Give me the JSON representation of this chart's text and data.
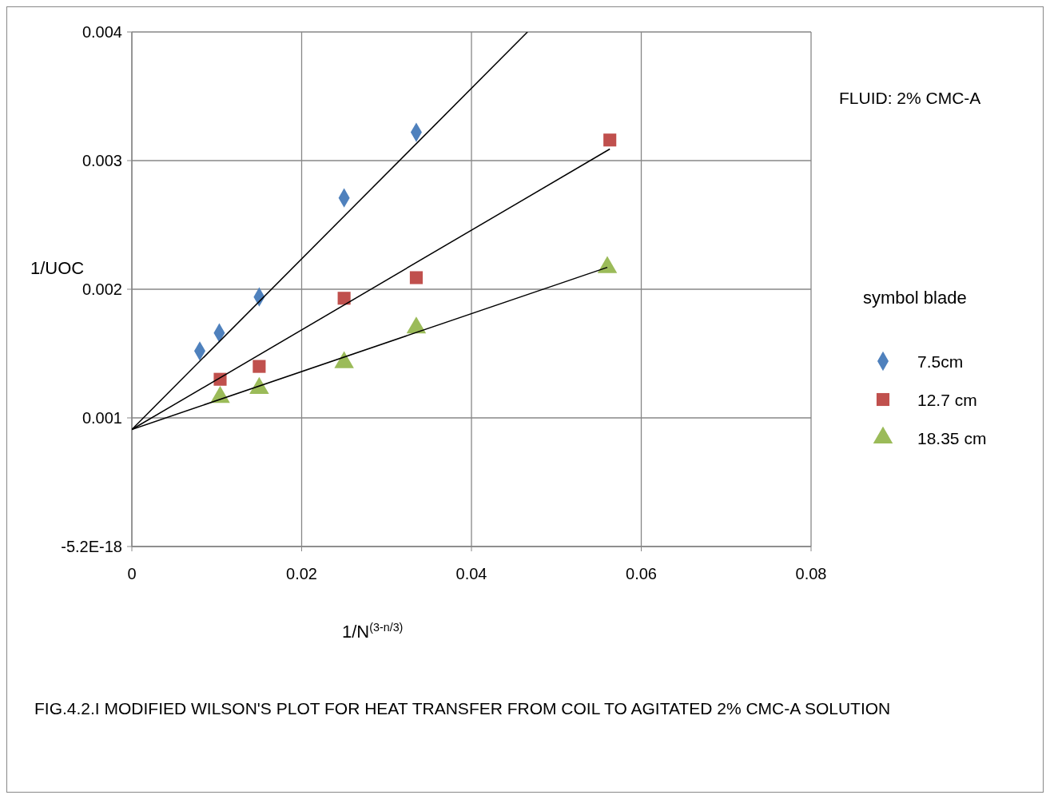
{
  "chart_data": {
    "type": "scatter",
    "xlabel": "1/N$^{(3-n/3)}$",
    "ylabel": "1/UOC",
    "legend_title": "symbol  blade",
    "xlim": [
      0,
      0.08
    ],
    "xticks": [
      0,
      0.02,
      0.04,
      0.06,
      0.08
    ],
    "ylim": [
      0,
      0.004
    ],
    "yticks": [
      {
        "value": 0,
        "label": "-5.2E-18"
      },
      0.001,
      0.002,
      0.003,
      0.004
    ],
    "grid": true,
    "legend": "right",
    "series": [
      {
        "name": "7.5cm",
        "color": "#4f81bd",
        "marker": "diamond",
        "x": [
          0.008,
          0.0103,
          0.015,
          0.025,
          0.0335
        ],
        "values": [
          0.00152,
          0.00166,
          0.00194,
          0.00271,
          0.00322
        ]
      },
      {
        "name": "12.7 cm",
        "color": "#c0504d",
        "marker": "square",
        "x": [
          0.0104,
          0.015,
          0.025,
          0.0335,
          0.0563
        ],
        "values": [
          0.0013,
          0.0014,
          0.00193,
          0.00209,
          0.00316
        ]
      },
      {
        "name": "18.35 cm",
        "color": "#9bbb59",
        "marker": "triangle",
        "x": [
          0.0104,
          0.015,
          0.025,
          0.0335,
          0.056
        ],
        "values": [
          0.00116,
          0.00123,
          0.00143,
          0.0017,
          0.00217
        ]
      },
      {
        "type": "line",
        "color": "#000000",
        "x": [
          0,
          0.0466
        ],
        "values": [
          0.00091,
          0.004
        ]
      },
      {
        "type": "line",
        "color": "#000000",
        "x": [
          0,
          0.0563
        ],
        "values": [
          0.00091,
          0.00309
        ]
      },
      {
        "type": "line",
        "color": "#000000",
        "x": [
          0,
          0.056
        ],
        "values": [
          0.00091,
          0.00217
        ]
      }
    ],
    "annotations": [
      "FLUID: 2% CMC-A",
      "FIG.4.2.I MODIFIED WILSON'S PLOT FOR HEAT TRANSFER FROM COIL TO AGITATED 2% CMC-A SOLUTION"
    ]
  }
}
